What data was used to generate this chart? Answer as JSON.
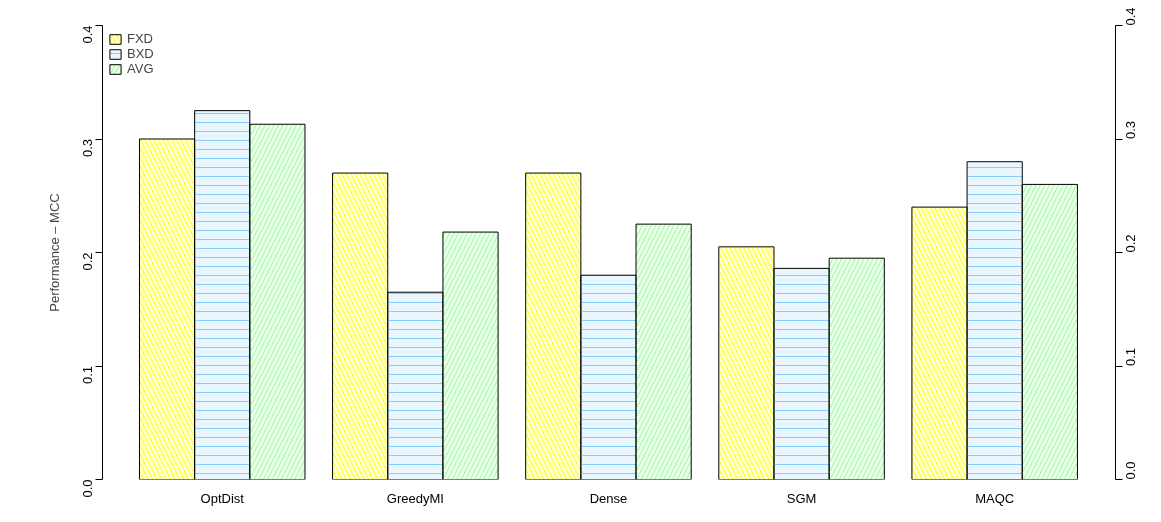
{
  "chart_data": {
    "type": "bar",
    "ylabel": "Performance – MCC",
    "categories": [
      "OptDist",
      "GreedyMI",
      "Dense",
      "SGM",
      "MAQC"
    ],
    "series": [
      {
        "name": "FXD",
        "color": "#ffff00",
        "values": [
          0.3,
          0.27,
          0.27,
          0.205,
          0.24
        ]
      },
      {
        "name": "BXD",
        "color": "#87cefa",
        "values": [
          0.325,
          0.165,
          0.18,
          0.186,
          0.28
        ]
      },
      {
        "name": "AVG",
        "color": "#98fb98",
        "values": [
          0.313,
          0.218,
          0.225,
          0.195,
          0.26
        ]
      }
    ],
    "ylim": [
      0,
      0.4
    ],
    "yticks": [
      {
        "value": 0,
        "label": "0.0"
      },
      0.1,
      0.2,
      0.3,
      0.4
    ],
    "y2lim": [
      0,
      0.4
    ],
    "y2ticks": [
      {
        "value": 0,
        "label": "0.0"
      },
      0.1,
      0.2,
      0.3,
      0.4
    ],
    "grid": false,
    "legend": "top left"
  }
}
